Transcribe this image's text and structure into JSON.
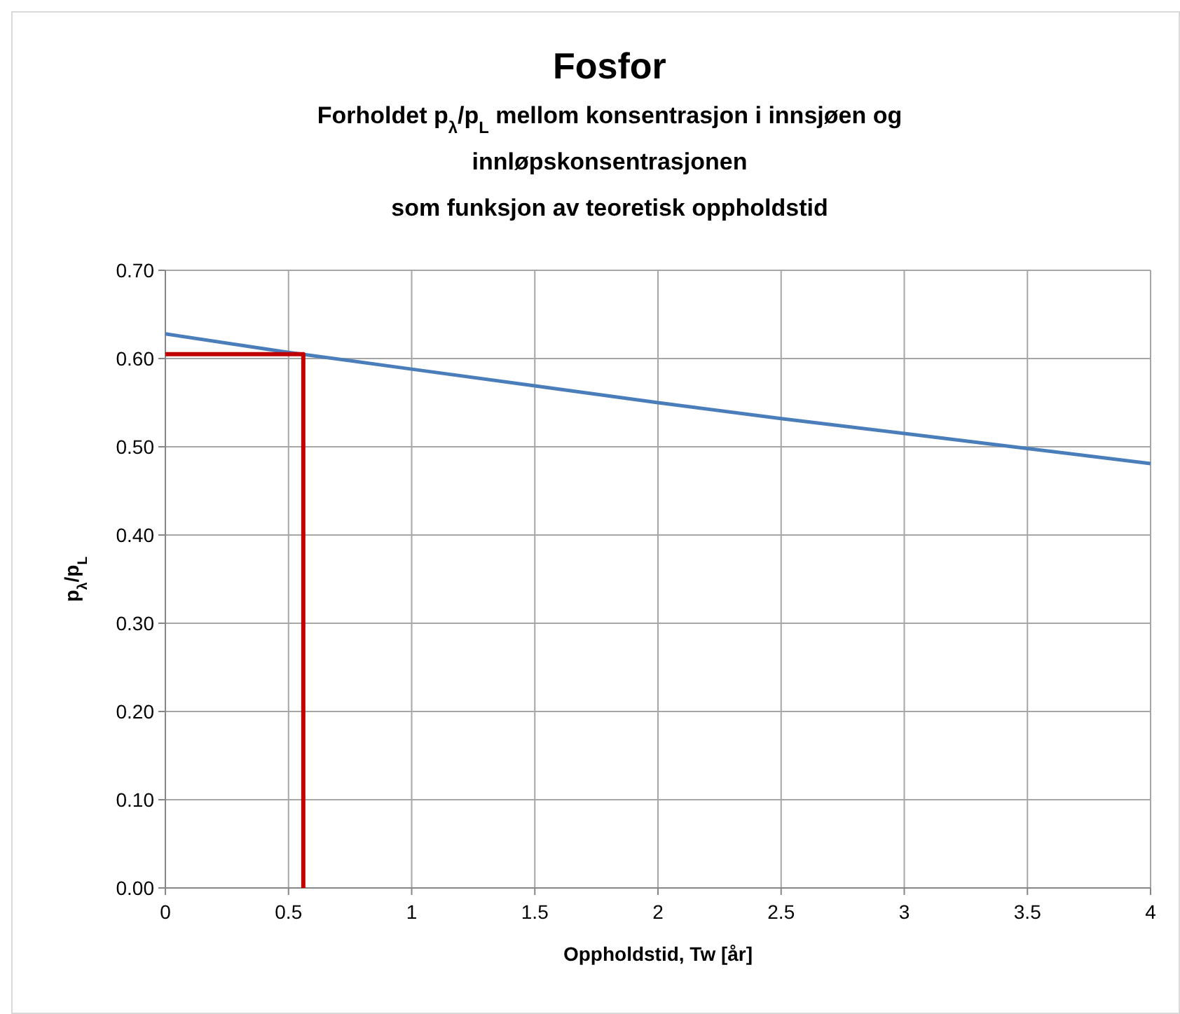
{
  "chart_data": {
    "type": "line",
    "title": "Fosfor",
    "subtitle": "Forholdet p$_{λ}$/p$_{L}$ mellom konsentrasjon  i innsjøen og\ninnløpskonsentrasjonen\nsom funksjon av teoretisk oppholdstid",
    "xlabel": "Oppholdstid, Tw [år]",
    "ylabel": "p$_{λ}$/p$_{L}$",
    "xlim": [
      0,
      4
    ],
    "xticks": [
      0,
      0.5,
      1,
      1.5,
      2,
      2.5,
      3,
      3.5,
      4
    ],
    "ylim": [
      0,
      0.7
    ],
    "yticks": [
      {
        "value": 0,
        "label": "0.00"
      },
      {
        "value": 0.1,
        "label": "0.10"
      },
      {
        "value": 0.2,
        "label": "0.20"
      },
      {
        "value": 0.3,
        "label": "0.30"
      },
      {
        "value": 0.4,
        "label": "0.40"
      },
      {
        "value": 0.5,
        "label": "0.50"
      },
      {
        "value": 0.6,
        "label": "0.60"
      },
      {
        "value": 0.7,
        "label": "0.70"
      }
    ],
    "grid": true,
    "marker": "none",
    "line_style": "solid",
    "series": [
      {
        "color": "#4a7ebb",
        "x": [
          0,
          0.5,
          1,
          1.5,
          2,
          2.5,
          3,
          3.5,
          4
        ],
        "values": [
          0.628,
          0.607,
          0.588,
          0.569,
          0.55,
          0.532,
          0.515,
          0.498,
          0.481
        ]
      },
      {
        "color": "#c00000",
        "x": [
          0,
          0.56,
          0.56
        ],
        "values": [
          0.605,
          0.605,
          0
        ]
      }
    ]
  }
}
